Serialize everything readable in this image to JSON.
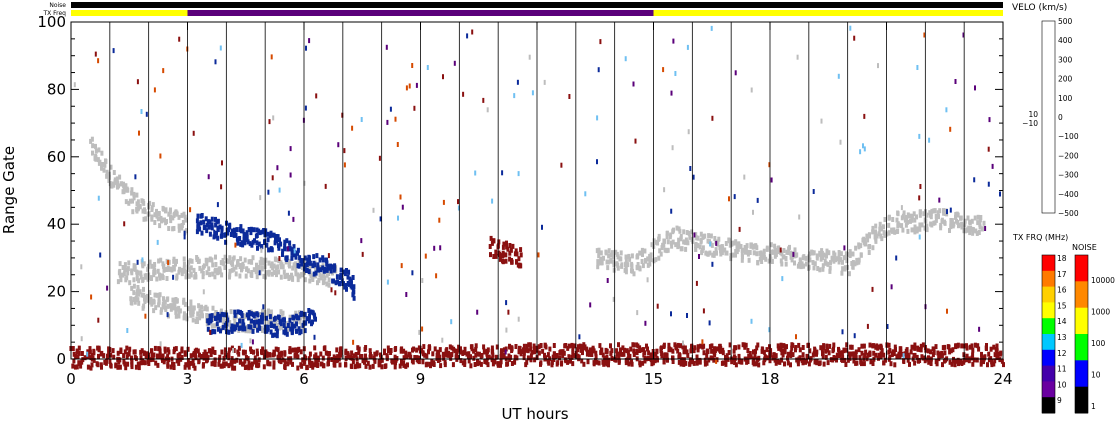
{
  "chart_data": {
    "type": "heatmap",
    "xlabel": "UT hours",
    "ylabel": "Range Gate",
    "xlim": [
      0,
      24
    ],
    "ylim": [
      0,
      100
    ],
    "x_ticks": [
      "0",
      "3",
      "6",
      "9",
      "12",
      "15",
      "18",
      "21",
      "24"
    ],
    "y_ticks": [
      "0",
      "20",
      "40",
      "60",
      "80",
      "100"
    ],
    "top_bars": {
      "noise_label": "Noise",
      "txfreq_label": "TX Freq",
      "txfreq_segments": [
        {
          "start": 0,
          "end": 3,
          "color": "#ffff00"
        },
        {
          "start": 3,
          "end": 15,
          "color": "#5a007a"
        },
        {
          "start": 15,
          "end": 24,
          "color": "#ffff00"
        }
      ]
    },
    "velocity_scale": {
      "title": "VELO (km/s)",
      "ticks": [
        "500",
        "400",
        "300",
        "200",
        "100",
        "0",
        "−100",
        "−200",
        "−300",
        "−400",
        "−500"
      ],
      "near_zero_labels": [
        "10",
        "−10"
      ],
      "colors": [
        "#bfe3ff",
        "#6fc0f2",
        "#2f8fd8",
        "#1a5dc4",
        "#0b2a9a",
        "#001870",
        "#5a0000",
        "#8a1010",
        "#a82a10",
        "#d64a00",
        "#ff7a00",
        "#ffb066",
        "#ffd9b3"
      ]
    },
    "txfreq_scale": {
      "title": "TX FRQ (MHz)",
      "ticks": [
        "18",
        "17",
        "16",
        "15",
        "14",
        "13",
        "12",
        "11",
        "10",
        "9"
      ],
      "colors": [
        "#ff0000",
        "#ff7a00",
        "#ffd000",
        "#ffff00",
        "#00ff00",
        "#00c8ff",
        "#0000ff",
        "#4400aa",
        "#6a00a0",
        "#000000"
      ]
    },
    "noise_scale": {
      "title": "NOISE",
      "ticks": [
        "10000",
        "1000",
        "100",
        "10",
        "1"
      ],
      "colors": [
        "#ff0000",
        "#ff8800",
        "#ffff00",
        "#00ff00",
        "#0000ff",
        "#000000"
      ]
    },
    "series": [
      {
        "color": "#bdbdbd",
        "points": [
          [
            0.5,
            63
          ],
          [
            1.0,
            55
          ],
          [
            1.5,
            48
          ],
          [
            2.0,
            44
          ],
          [
            2.5,
            42
          ],
          [
            3.0,
            41
          ]
        ]
      },
      {
        "color": "#bdbdbd",
        "points": [
          [
            1.2,
            26
          ],
          [
            2.0,
            27
          ],
          [
            3.0,
            28
          ],
          [
            4.0,
            28
          ],
          [
            5.0,
            28
          ],
          [
            6.0,
            27
          ],
          [
            6.8,
            25
          ]
        ]
      },
      {
        "color": "#bdbdbd",
        "points": [
          [
            1.5,
            20
          ],
          [
            2.0,
            18
          ],
          [
            3.0,
            15
          ],
          [
            4.0,
            12
          ],
          [
            5.0,
            12
          ],
          [
            6.0,
            12
          ]
        ]
      },
      {
        "color": "#bdbdbd",
        "points": [
          [
            13.5,
            31
          ],
          [
            14.5,
            29
          ],
          [
            15.5,
            37
          ],
          [
            17.0,
            33
          ],
          [
            18.5,
            31
          ],
          [
            20.0,
            29
          ],
          [
            21.0,
            41
          ],
          [
            22.5,
            42
          ],
          [
            23.5,
            40
          ]
        ]
      },
      {
        "color": "#0b2a9a",
        "points": [
          [
            3.2,
            41
          ],
          [
            4.0,
            38
          ],
          [
            5.0,
            36
          ],
          [
            6.0,
            30
          ],
          [
            7.0,
            25
          ],
          [
            7.3,
            21
          ]
        ]
      },
      {
        "color": "#0b2a9a",
        "points": [
          [
            3.5,
            11
          ],
          [
            4.5,
            12
          ],
          [
            5.5,
            10
          ],
          [
            6.3,
            13
          ]
        ]
      },
      {
        "color": "#8a1010",
        "points": [
          [
            10.8,
            34
          ],
          [
            11.2,
            32
          ],
          [
            11.6,
            30
          ]
        ]
      },
      {
        "color": "#8a1010",
        "points": [
          [
            0,
            1
          ],
          [
            6,
            1
          ],
          [
            12,
            2
          ],
          [
            18,
            2
          ],
          [
            24,
            2
          ]
        ]
      }
    ]
  }
}
